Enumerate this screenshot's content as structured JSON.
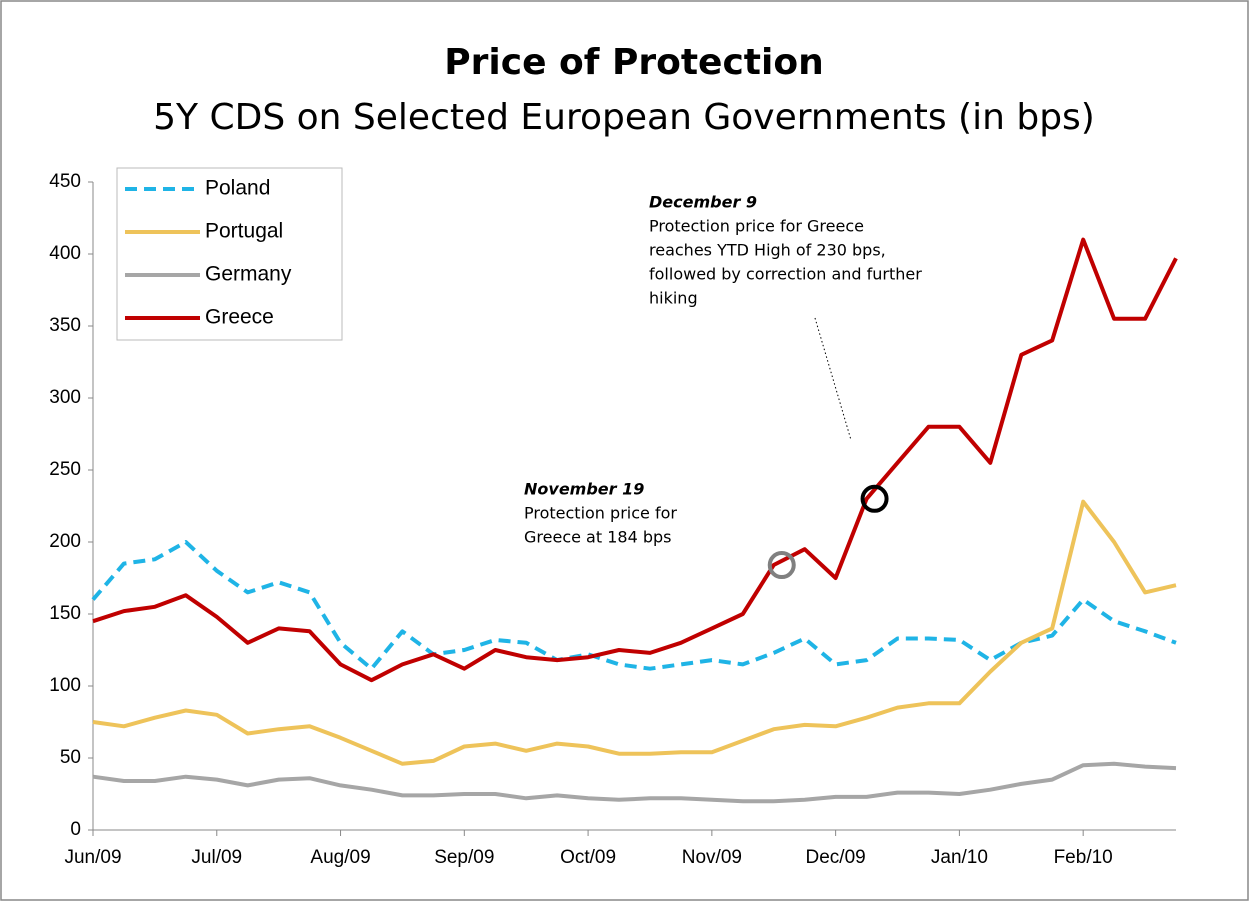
{
  "chart_data": {
    "type": "line",
    "title": "Price of Protection",
    "subtitle": "5Y CDS on Selected European Governments (in bps)",
    "categories": [
      "Jun/09",
      null,
      null,
      null,
      "Jul/09",
      null,
      null,
      null,
      "Aug/09",
      null,
      null,
      null,
      "Sep/09",
      null,
      null,
      null,
      "Oct/09",
      null,
      null,
      null,
      "Nov/09",
      null,
      null,
      null,
      "Dec/09",
      null,
      null,
      null,
      "Jan/10",
      null,
      null,
      null,
      "Feb/10",
      null,
      null,
      null
    ],
    "series": [
      {
        "name": "Poland",
        "color": "#1fb4e6",
        "dash": true,
        "values": [
          160,
          185,
          188,
          200,
          180,
          165,
          172,
          165,
          130,
          112,
          138,
          122,
          125,
          132,
          130,
          118,
          122,
          115,
          112,
          115,
          118,
          115,
          123,
          133,
          115,
          118,
          133,
          133,
          132,
          118,
          130,
          135,
          160,
          145,
          138,
          130
        ]
      },
      {
        "name": "Portugal",
        "color": "#eec35a",
        "dash": false,
        "values": [
          75,
          72,
          78,
          83,
          80,
          67,
          70,
          72,
          64,
          55,
          46,
          48,
          58,
          60,
          55,
          60,
          58,
          53,
          53,
          54,
          54,
          62,
          70,
          73,
          72,
          78,
          85,
          88,
          88,
          110,
          130,
          140,
          228,
          200,
          165,
          170
        ]
      },
      {
        "name": "Germany",
        "color": "#a6a6a6",
        "dash": false,
        "values": [
          37,
          34,
          34,
          37,
          35,
          31,
          35,
          36,
          31,
          28,
          24,
          24,
          25,
          25,
          22,
          24,
          22,
          21,
          22,
          22,
          21,
          20,
          20,
          21,
          23,
          23,
          26,
          26,
          25,
          28,
          32,
          35,
          45,
          46,
          44,
          43
        ]
      },
      {
        "name": "Greece",
        "color": "#c00000",
        "dash": false,
        "values": [
          145,
          152,
          155,
          163,
          148,
          130,
          140,
          138,
          115,
          104,
          115,
          122,
          112,
          125,
          120,
          118,
          120,
          125,
          123,
          130,
          140,
          150,
          184,
          195,
          175,
          230,
          255,
          280,
          280,
          255,
          330,
          340,
          410,
          355,
          355,
          397
        ]
      }
    ],
    "ylim": [
      0,
      450
    ],
    "yticks": [
      0,
      50,
      100,
      150,
      200,
      250,
      300,
      350,
      400,
      450
    ],
    "legend": "top-left",
    "annotations": [
      {
        "title": "November 19",
        "lines": [
          "Protection price for",
          "Greece  at 184 bps"
        ],
        "series": 3,
        "point": 22,
        "circle": "#808080"
      },
      {
        "title": "December 9",
        "lines": [
          "Protection price for Greece",
          "reaches YTD High of 230 bps,",
          "followed by correction and further",
          "hiking"
        ],
        "series": 3,
        "point": 25,
        "circle": "#000000"
      }
    ]
  }
}
